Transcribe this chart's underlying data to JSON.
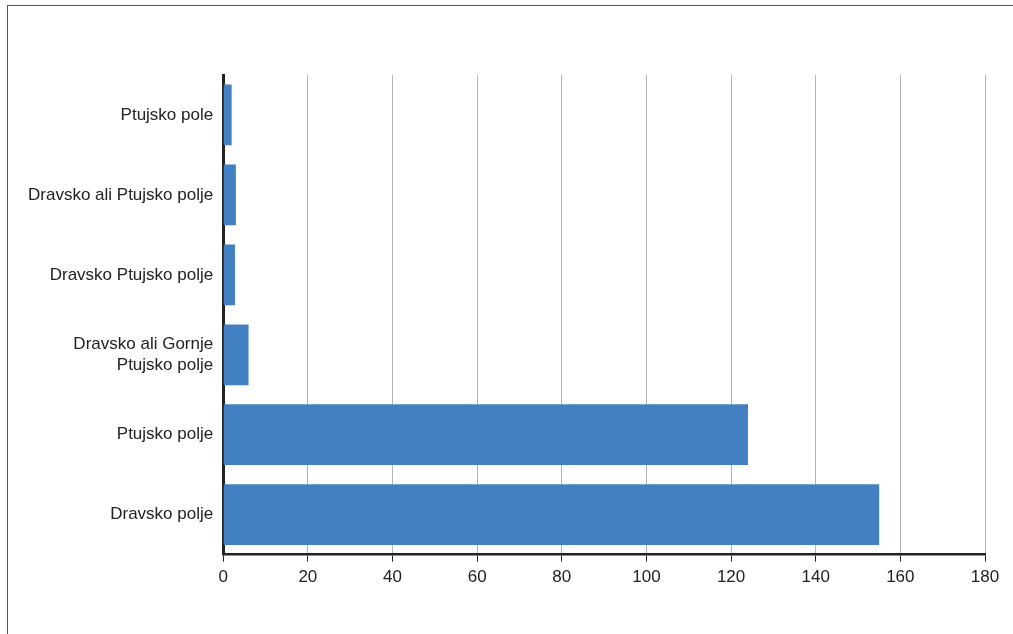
{
  "chart_data": {
    "type": "bar",
    "orientation": "horizontal",
    "categories": [
      "Ptujsko pole",
      "Dravsko ali Ptujsko polje",
      "Dravsko Ptujsko polje",
      "Dravsko ali Gornje Ptujsko polje",
      "Ptujsko polje",
      "Dravsko polje"
    ],
    "values": [
      2,
      3,
      2.8,
      6,
      124,
      155
    ],
    "color": "#4380c2",
    "xlim": [
      0,
      180
    ],
    "xticks": [
      0,
      20,
      40,
      60,
      80,
      100,
      120,
      140,
      160,
      180
    ],
    "grid": "x",
    "legend": false
  }
}
